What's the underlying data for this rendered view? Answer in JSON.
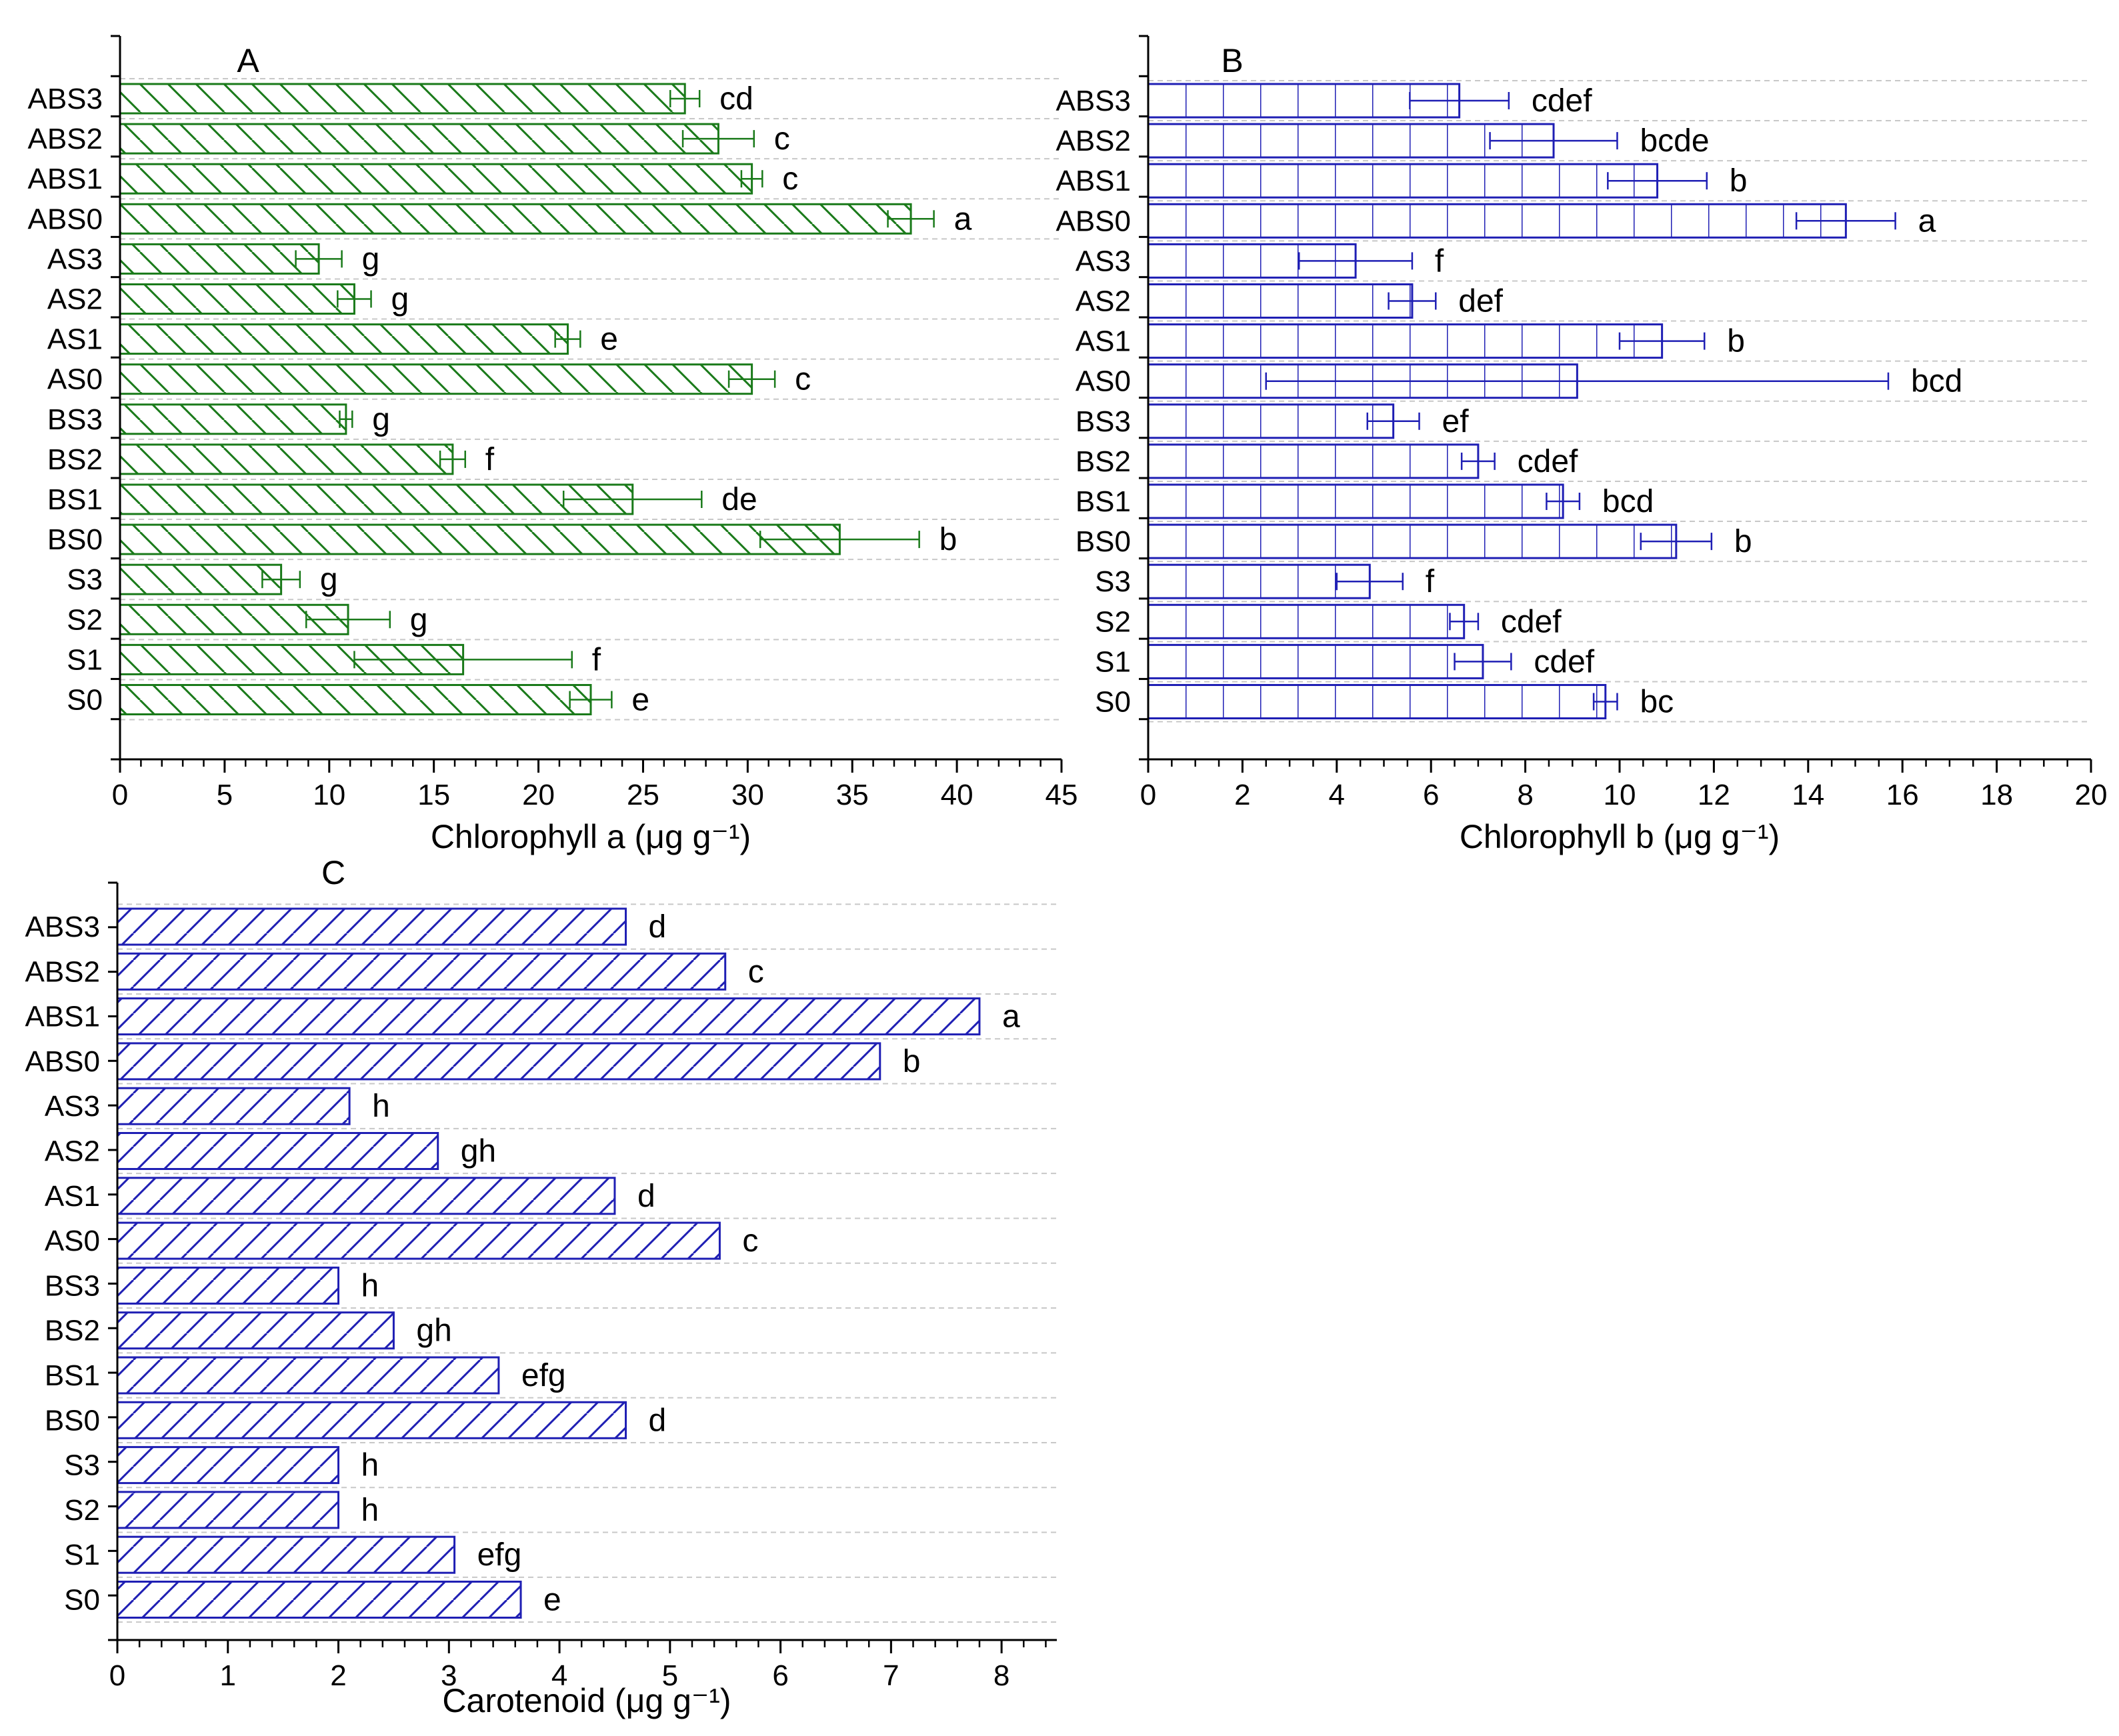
{
  "chart_data": [
    {
      "id": "A",
      "type": "bar",
      "orientation": "horizontal",
      "panel_label": "A",
      "xlabel": "Chlorophyll a (μg g⁻¹)",
      "xlim": [
        0,
        45
      ],
      "x_ticks": [
        "0",
        "5",
        "10",
        "15",
        "20",
        "25",
        "30",
        "35",
        "40",
        "45"
      ],
      "grid": "horizontal dashed",
      "color": "#1a7a1a",
      "hatch": "backslash",
      "categories": [
        "ABS3",
        "ABS2",
        "ABS1",
        "ABS0",
        "AS3",
        "AS2",
        "AS1",
        "AS0",
        "BS3",
        "BS2",
        "BS1",
        "BS0",
        "S3",
        "S2",
        "S1",
        "S0"
      ],
      "values": [
        27.0,
        28.6,
        30.2,
        37.8,
        9.5,
        11.2,
        21.4,
        30.2,
        10.8,
        15.9,
        24.5,
        34.4,
        7.7,
        10.9,
        16.4,
        22.5
      ],
      "errors": [
        0.7,
        1.7,
        0.5,
        1.1,
        1.1,
        0.8,
        0.6,
        1.1,
        0.3,
        0.6,
        3.3,
        3.8,
        0.9,
        2.0,
        5.2,
        1.0
      ],
      "significance": [
        "cd",
        "c",
        "c",
        "a",
        "g",
        "g",
        "e",
        "c",
        "g",
        "f",
        "de",
        "b",
        "g",
        "g",
        "f",
        "e"
      ]
    },
    {
      "id": "B",
      "type": "bar",
      "orientation": "horizontal",
      "panel_label": "B",
      "xlabel": "Chlorophyll b (μg g⁻¹)",
      "xlim": [
        0,
        20
      ],
      "x_ticks": [
        "0",
        "2",
        "4",
        "6",
        "8",
        "10",
        "12",
        "14",
        "16",
        "18",
        "20"
      ],
      "grid": "horizontal dashed",
      "color": "#1f1fb4",
      "hatch": "grid",
      "categories": [
        "ABS3",
        "ABS2",
        "ABS1",
        "ABS0",
        "AS3",
        "AS2",
        "AS1",
        "AS0",
        "BS3",
        "BS2",
        "BS1",
        "BS0",
        "S3",
        "S2",
        "S1",
        "S0"
      ],
      "values": [
        6.6,
        8.6,
        10.8,
        14.8,
        4.4,
        5.6,
        10.9,
        9.1,
        5.2,
        7.0,
        8.8,
        11.2,
        4.7,
        6.7,
        7.1,
        9.7
      ],
      "errors": [
        1.05,
        1.35,
        1.05,
        1.05,
        1.2,
        0.5,
        0.9,
        6.6,
        0.55,
        0.35,
        0.35,
        0.75,
        0.7,
        0.3,
        0.6,
        0.25
      ],
      "significance": [
        "cdef",
        "bcde",
        "b",
        "a",
        "f",
        "def",
        "b",
        "bcd",
        "ef",
        "cdef",
        "bcd",
        "b",
        "f",
        "cdef",
        "cdef",
        "bc"
      ]
    },
    {
      "id": "C",
      "type": "bar",
      "orientation": "horizontal",
      "panel_label": "C",
      "xlabel": "Carotenoid (μg g⁻¹)",
      "xlim": [
        0,
        8.5
      ],
      "x_ticks": [
        "0",
        "1",
        "2",
        "3",
        "4",
        "5",
        "6",
        "7",
        "8"
      ],
      "grid": "horizontal dashed",
      "color": "#1f1fb4",
      "hatch": "slash",
      "categories": [
        "ABS3",
        "ABS2",
        "ABS1",
        "ABS0",
        "AS3",
        "AS2",
        "AS1",
        "AS0",
        "BS3",
        "BS2",
        "BS1",
        "BS0",
        "S3",
        "S2",
        "S1",
        "S0"
      ],
      "values": [
        4.6,
        5.5,
        7.8,
        6.9,
        2.1,
        2.9,
        4.5,
        5.45,
        2.0,
        2.5,
        3.45,
        4.6,
        2.0,
        2.0,
        3.05,
        3.65
      ],
      "errors": [],
      "significance": [
        "d",
        "c",
        "a",
        "b",
        "h",
        "gh",
        "d",
        "c",
        "h",
        "gh",
        "efg",
        "d",
        "h",
        "h",
        "efg",
        "e"
      ]
    }
  ]
}
